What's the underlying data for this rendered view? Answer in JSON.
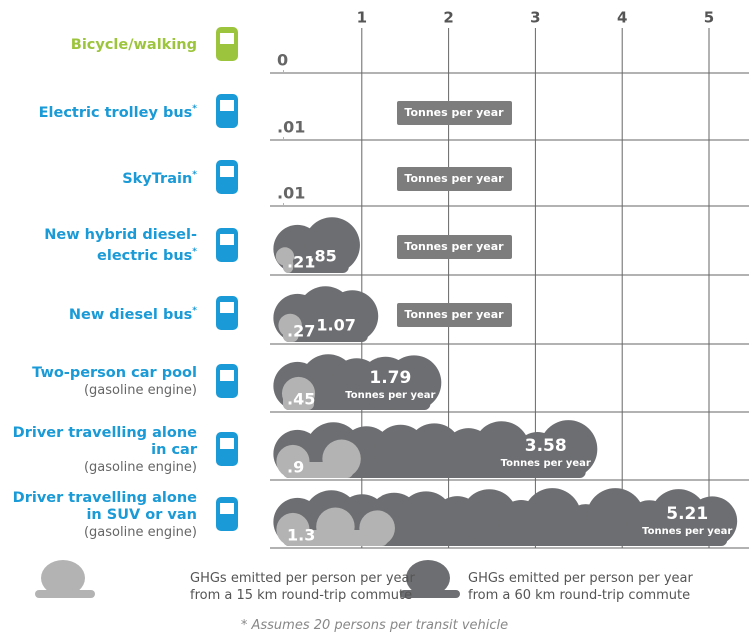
{
  "chart_data": {
    "type": "bar",
    "categories": [
      "Bicycle/walking",
      "Electric trolley bus*",
      "SkyTrain*",
      "New hybrid diesel-electric bus*",
      "New diesel bus*",
      "Two-person car pool",
      "Driver travelling alone in car",
      "Driver travelling alone in SUV or van"
    ],
    "category_notes": [
      null,
      null,
      null,
      null,
      null,
      "(gasoline engine)",
      "(gasoline engine)",
      "(gasoline engine)"
    ],
    "series": [
      {
        "name": "GHGs emitted per person per year from a 15 km round-trip commute",
        "color": "#b3b3b3",
        "values": [
          0,
          0.01,
          0.01,
          0.21,
          0.27,
          0.45,
          0.9,
          1.3
        ],
        "value_labels": [
          "0",
          ".01",
          ".01",
          ".21",
          ".27",
          ".45",
          ".9",
          "1.3"
        ]
      },
      {
        "name": "GHGs emitted per person per year from a 60 km round-trip commute",
        "color": "#6d6e71",
        "values": [
          null,
          null,
          null,
          0.85,
          1.07,
          1.79,
          3.58,
          5.21
        ],
        "value_labels": [
          null,
          null,
          null,
          ".85",
          "1.07",
          "1.79",
          "3.58",
          "5.21"
        ]
      }
    ],
    "unit_label": "Tonnes per year",
    "xlim": [
      0,
      5
    ],
    "xticks": [
      1,
      2,
      3,
      4,
      5
    ],
    "footnote": "* Assumes 20 persons per transit vehicle"
  }
}
